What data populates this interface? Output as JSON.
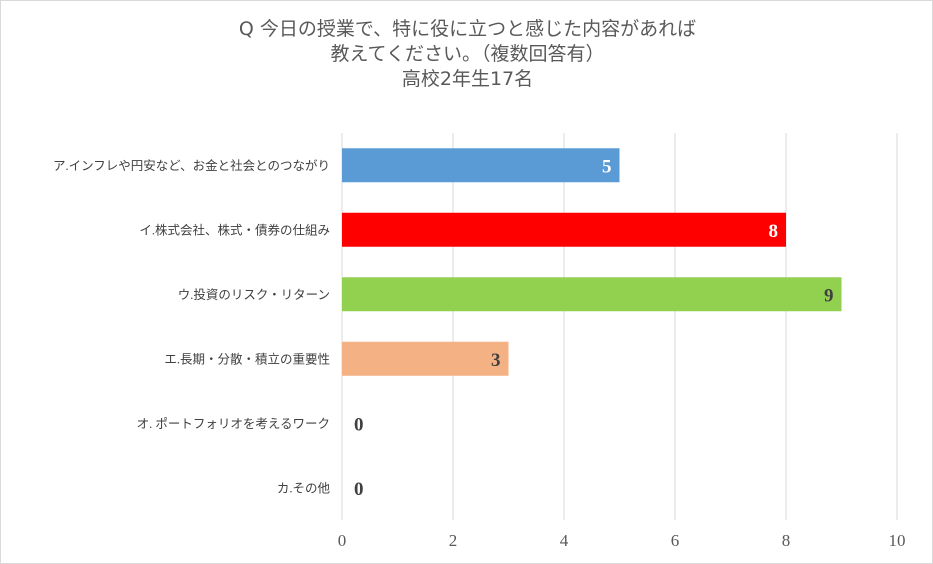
{
  "chart_data": {
    "type": "bar",
    "orientation": "horizontal",
    "title_lines": [
      "Q 今日の授業で、特に役に立つと感じた内容があれば",
      "教えてください。（複数回答有）",
      "高校2年生17名"
    ],
    "categories": [
      "ア.インフレや円安など、お金と社会とのつながり",
      "イ.株式会社、株式・債券の仕組み",
      "ウ.投資のリスク・リターン",
      "エ.長期・分散・積立の重要性",
      "オ. ポートフォリオを考えるワーク",
      "カ.その他"
    ],
    "values": [
      5,
      8,
      9,
      3,
      0,
      0
    ],
    "bar_colors": [
      "#5b9bd5",
      "#ff0000",
      "#92d050",
      "#f4b183",
      "#5b9bd5",
      "#5b9bd5"
    ],
    "label_colors": [
      "#ffffff",
      "#ffffff",
      "#404040",
      "#404040",
      "#404040",
      "#404040"
    ],
    "xlim": [
      0,
      10
    ],
    "xticks": [
      0,
      2,
      4,
      6,
      8,
      10
    ],
    "grid": true,
    "gridline_color": "#d9d9d9",
    "legend": "none"
  }
}
